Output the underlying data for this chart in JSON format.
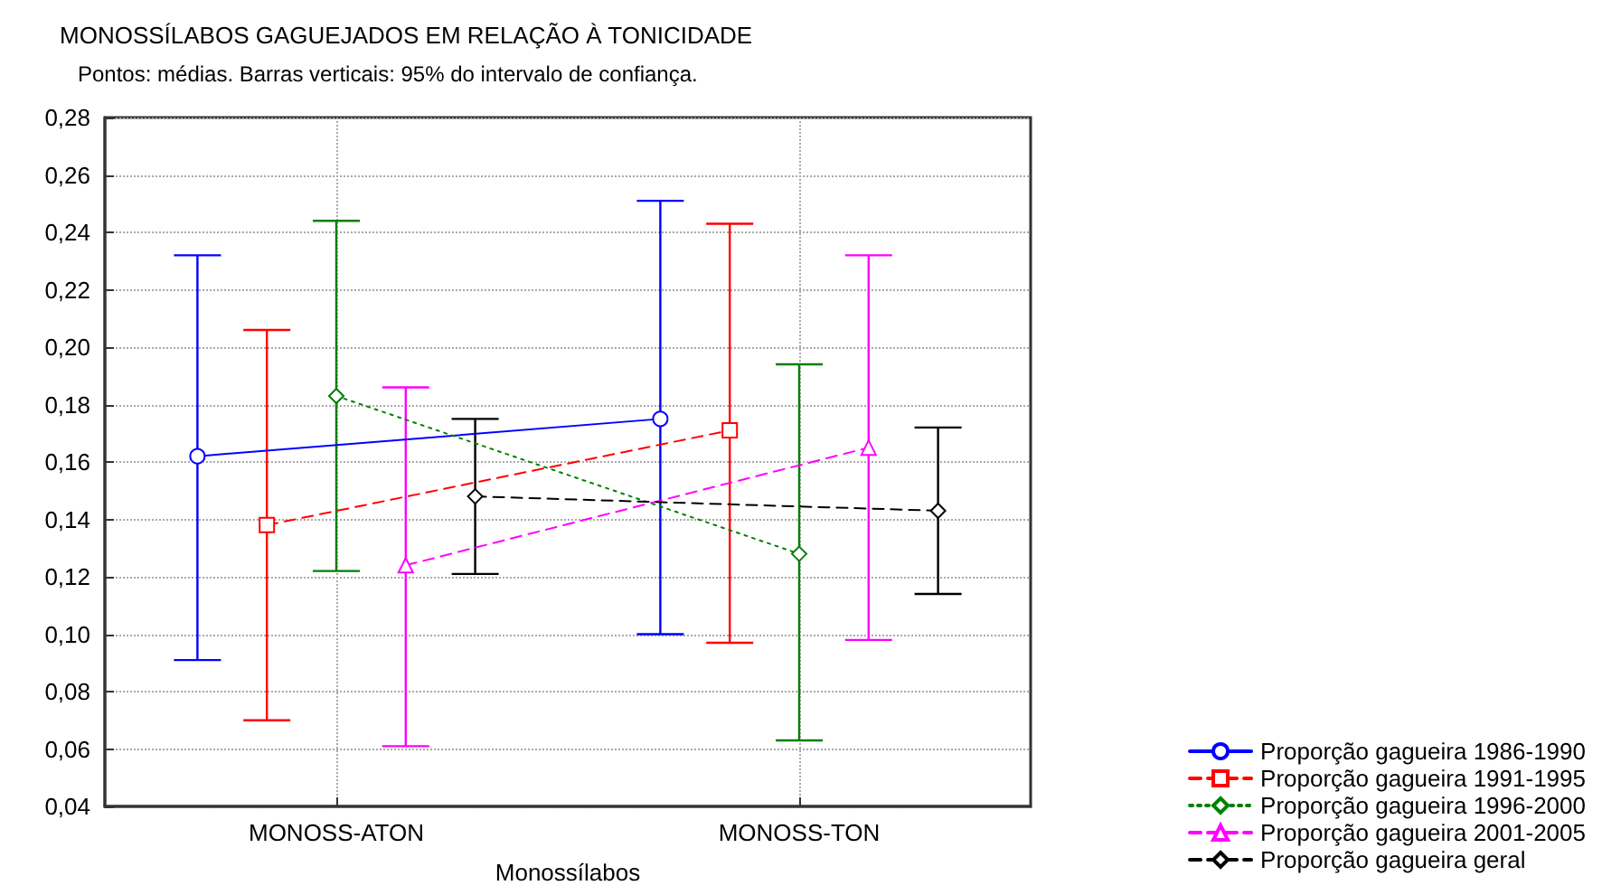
{
  "chart_data": {
    "type": "line",
    "title": "MONOSSÍLABOS GAGUEJADOS EM RELAÇÃO À TONICIDADE",
    "subtitle": "Pontos: médias. Barras verticais: 95% do intervalo de confiança.",
    "xlabel": "Monossílabos",
    "categories": [
      "MONOSS-ATON",
      "MONOSS-TON"
    ],
    "series": [
      {
        "name": "Proporção gagueira 1986-1990",
        "color": "#0000ff",
        "values": [
          0.162,
          0.175
        ],
        "errors": [
          [
            0.091,
            0.232
          ],
          [
            0.1,
            0.251
          ]
        ],
        "marker": "circle",
        "line_style": "solid"
      },
      {
        "name": "Proporção gagueira 1991-1995",
        "color": "#ff0000",
        "values": [
          0.138,
          0.171
        ],
        "errors": [
          [
            0.07,
            0.206
          ],
          [
            0.097,
            0.243
          ]
        ],
        "marker": "square",
        "line_style": "dashed"
      },
      {
        "name": "Proporção gagueira 1996-2000",
        "color": "#008000",
        "values": [
          0.183,
          0.128
        ],
        "errors": [
          [
            0.122,
            0.244
          ],
          [
            0.063,
            0.194
          ]
        ],
        "marker": "diamond",
        "line_style": "dotted"
      },
      {
        "name": "Proporção gagueira 2001-2005",
        "color": "#ff00ff",
        "values": [
          0.124,
          0.165
        ],
        "errors": [
          [
            0.061,
            0.186
          ],
          [
            0.098,
            0.232
          ]
        ],
        "marker": "triangle",
        "line_style": "dashed"
      },
      {
        "name": "Proporção gagueira geral",
        "color": "#000000",
        "values": [
          0.148,
          0.143
        ],
        "errors": [
          [
            0.121,
            0.175
          ],
          [
            0.114,
            0.172
          ]
        ],
        "marker": "diamond",
        "line_style": "dashed"
      }
    ],
    "ylim": [
      0.04,
      0.28
    ],
    "yticks": [
      {
        "value": 0.04,
        "label": "0,04"
      },
      {
        "value": 0.06,
        "label": "0,06"
      },
      {
        "value": 0.08,
        "label": "0,08"
      },
      {
        "value": 0.1,
        "label": "0,10"
      },
      {
        "value": 0.12,
        "label": "0,12"
      },
      {
        "value": 0.14,
        "label": "0,14"
      },
      {
        "value": 0.16,
        "label": "0,16"
      },
      {
        "value": 0.18,
        "label": "0,18"
      },
      {
        "value": 0.2,
        "label": "0,20"
      },
      {
        "value": 0.22,
        "label": "0,22"
      },
      {
        "value": 0.24,
        "label": "0,24"
      },
      {
        "value": 0.26,
        "label": "0,26"
      },
      {
        "value": 0.28,
        "label": "0,28"
      }
    ],
    "grid": true,
    "legend": "bottom right"
  }
}
